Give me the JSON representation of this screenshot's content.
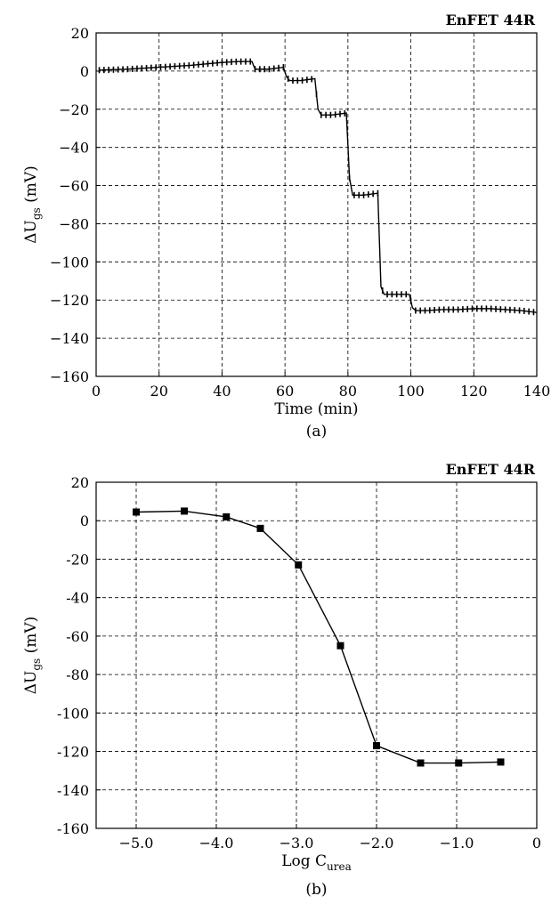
{
  "chart_data": [
    {
      "type": "line",
      "title": "EnFET 44R",
      "caption": "(a)",
      "xlabel": "Time (min)",
      "ylabel_main": "ΔU",
      "ylabel_sub": "gs",
      "ylabel_unit": " (mV)",
      "xlim": [
        0,
        140
      ],
      "ylim": [
        -160,
        20
      ],
      "xticks": [
        0,
        20,
        40,
        60,
        80,
        100,
        120,
        140
      ],
      "xtick_labels": [
        "0",
        "20",
        "40",
        "60",
        "80",
        "100",
        "120",
        "140"
      ],
      "yticks": [
        20,
        0,
        -20,
        -40,
        -60,
        -80,
        -100,
        -120,
        -140,
        -160
      ],
      "ytick_labels": [
        "20",
        "0",
        "−20",
        "−40",
        "−60",
        "−80",
        "−100",
        "−120",
        "−140",
        "−160"
      ],
      "grid": true,
      "marker": "dense-markers",
      "series": [
        {
          "x": [
            1,
            10,
            20,
            30,
            40,
            45,
            49.5,
            50.5,
            55,
            59.5,
            60.5,
            61.5,
            65,
            69.5,
            70.5,
            71.5,
            75,
            79.5,
            80.5,
            81.5,
            85,
            89.5,
            90.5,
            91.5,
            95,
            99.5,
            100.5,
            101.5,
            105,
            110,
            115,
            120,
            125,
            130,
            135,
            140
          ],
          "y": [
            0.5,
            1,
            2,
            3,
            4.5,
            5,
            5,
            1,
            1,
            2,
            -3,
            -5,
            -5,
            -4,
            -20,
            -23,
            -23,
            -22,
            -56,
            -65,
            -65,
            -64,
            -113,
            -117,
            -117,
            -117,
            -124,
            -125.5,
            -125.5,
            -125,
            -125,
            -124.5,
            -124.5,
            -125,
            -125.5,
            -126.5
          ]
        }
      ]
    },
    {
      "type": "line",
      "title": "EnFET 44R",
      "caption": "(b)",
      "xlabel_main": "Log C",
      "xlabel_sub": "urea",
      "ylabel_main": "ΔU",
      "ylabel_sub": "gs",
      "ylabel_unit": " (mV)",
      "xlim": [
        -5.5,
        0
      ],
      "ylim": [
        -160,
        20
      ],
      "xticks": [
        -5,
        -4,
        -3,
        -2,
        -1,
        0
      ],
      "xtick_labels": [
        "−5.0",
        "−4.0",
        "−3.0",
        "−2.0",
        "−1.0",
        "0"
      ],
      "yticks": [
        20,
        0,
        -20,
        -40,
        -60,
        -80,
        -100,
        -120,
        -140,
        -160
      ],
      "ytick_labels": [
        "20",
        "0",
        "-20",
        "-40",
        "-60",
        "-80",
        "-100",
        "-120",
        "-140",
        "-160"
      ],
      "grid": true,
      "marker": "square",
      "series": [
        {
          "x": [
            -5.0,
            -4.4,
            -3.875,
            -3.45,
            -2.975,
            -2.45,
            -2.0,
            -1.45,
            -0.975,
            -0.45
          ],
          "y": [
            4.5,
            5,
            2,
            -4,
            -23,
            -65,
            -117,
            -126,
            -126,
            -125.5
          ]
        }
      ]
    }
  ]
}
